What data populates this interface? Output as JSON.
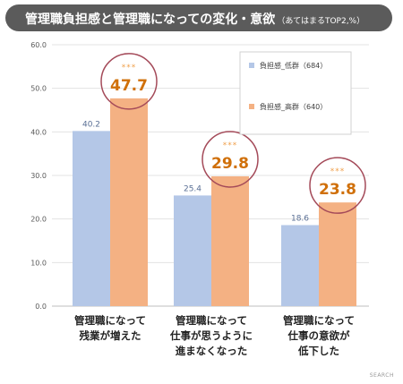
{
  "title": {
    "main": "管理職負担感と管理職になっての変化・意欲",
    "sub": "（あてはまるTOP2,%）"
  },
  "brand": "SEARCH",
  "colors": {
    "low": "#b4c7e7",
    "high": "#f4b183",
    "high_label": "#d0700a",
    "low_label": "#5a6f95",
    "circle": "#a44a59",
    "significance": "#f0a04b"
  },
  "chart_data": {
    "type": "bar",
    "title": "管理職負担感と管理職になっての変化・意欲",
    "subtitle": "（あてはまるTOP2,%）",
    "categories": [
      [
        "管理職になって",
        "残業が増えた"
      ],
      [
        "管理職になって",
        "仕事が思うように",
        "進まなくなった"
      ],
      [
        "管理職になって",
        "仕事の意欲が",
        "低下した"
      ]
    ],
    "series": [
      {
        "name": "負担感_低群（684）",
        "values": [
          40.2,
          25.4,
          18.6
        ]
      },
      {
        "name": "負担感_高群（640）",
        "values": [
          47.7,
          29.8,
          23.8
        ]
      }
    ],
    "significance": [
      "***",
      "***",
      "***"
    ],
    "yticks": [
      "0.0",
      "10.0",
      "20.0",
      "30.0",
      "40.0",
      "50.0",
      "60.0"
    ],
    "ylim": [
      0,
      60
    ],
    "grid": true,
    "legend": "top-right"
  }
}
